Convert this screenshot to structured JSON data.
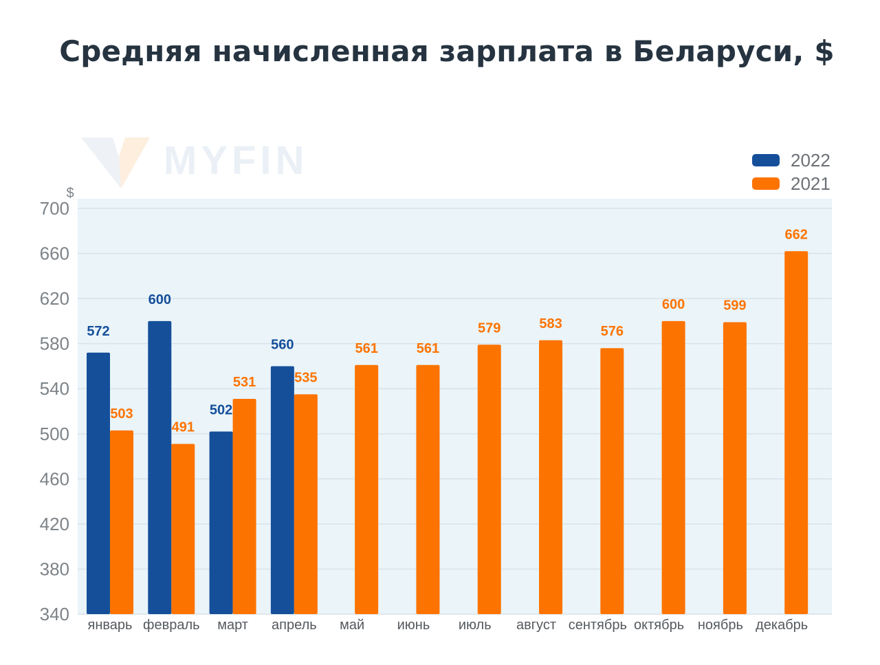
{
  "colors": {
    "series_2022": "#154f9a",
    "series_2021": "#fd7300",
    "plot_background": "#eaf4f9",
    "gridline": "#d8e2ea"
  },
  "watermark": {
    "text": "MYFIN",
    "icon": "myfin-logo-icon"
  },
  "chart_data": {
    "type": "bar",
    "title": "Средняя начисленная зарплата в Беларуси, $",
    "ylabel": "$",
    "xlabel": "",
    "ylim": [
      340,
      700
    ],
    "yticks": [
      340,
      380,
      420,
      460,
      500,
      540,
      580,
      620,
      660,
      700
    ],
    "grid": true,
    "legend_position": "top-right",
    "categories": [
      "январь",
      "февраль",
      "март",
      "апрель",
      "май",
      "июнь",
      "июль",
      "август",
      "сентябрь",
      "октябрь",
      "ноябрь",
      "декабрь"
    ],
    "series": [
      {
        "name": "2022",
        "values": [
          572,
          600,
          502,
          560,
          null,
          null,
          null,
          null,
          null,
          null,
          null,
          null
        ]
      },
      {
        "name": "2021",
        "values": [
          503,
          491,
          531,
          535,
          561,
          561,
          579,
          583,
          576,
          600,
          599,
          662
        ]
      }
    ]
  }
}
